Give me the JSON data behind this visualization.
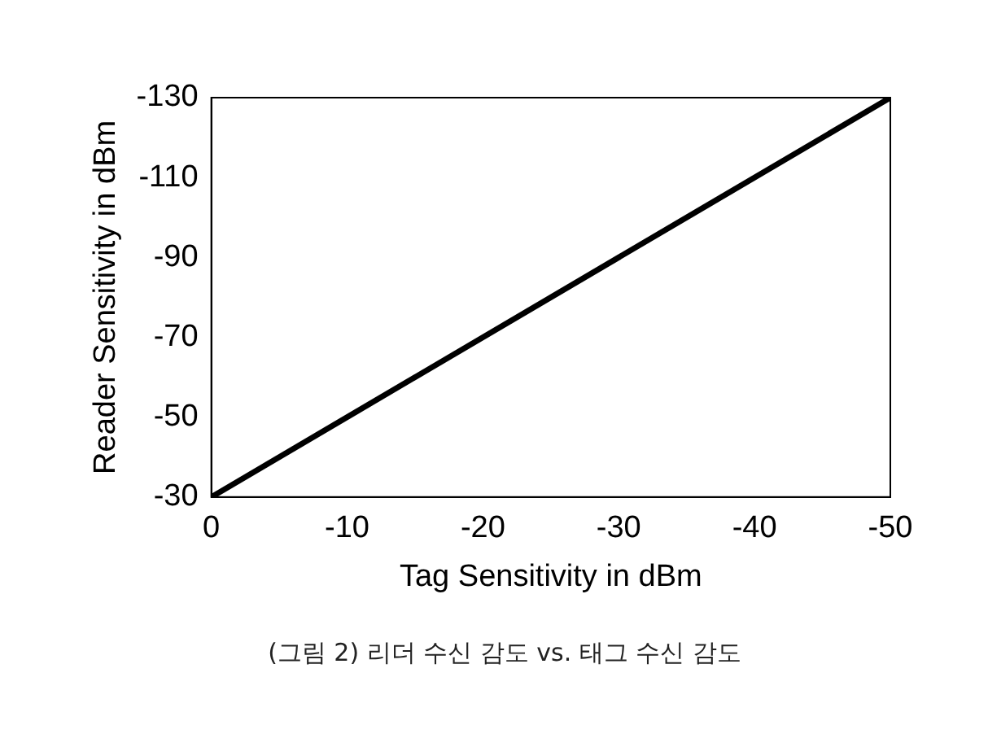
{
  "chart_data": {
    "type": "line",
    "xlabel": "Tag Sensitivity in dBm",
    "ylabel": "Reader Sensitivity in dBm",
    "x": [
      0,
      -50
    ],
    "series": [
      {
        "color": "#000000",
        "values": [
          -30,
          -130
        ]
      }
    ],
    "xlim": [
      0,
      -50
    ],
    "xticks": [
      0,
      -10,
      -20,
      -30,
      -40,
      -50
    ],
    "ylim": [
      -30,
      -130
    ],
    "yticks": [
      -30,
      -50,
      -70,
      -90,
      -110,
      -130
    ],
    "grid": false,
    "legend": false,
    "marker": "none",
    "line_style": "solid",
    "annotations": [
      "(그림 2) 리더 수신 감도 vs. 태그 수신 감도"
    ]
  }
}
